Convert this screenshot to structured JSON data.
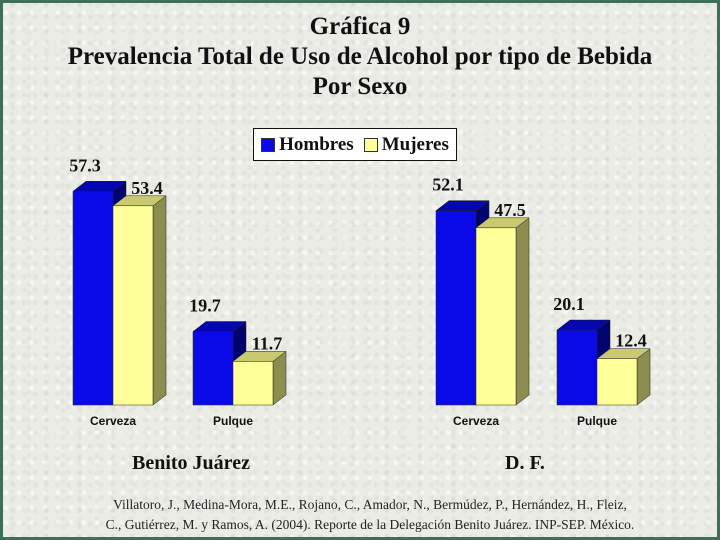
{
  "title": {
    "line1": "Gráfica 9",
    "line2": "Prevalencia Total de Uso de Alcohol por tipo de Bebida",
    "line3": "Por Sexo"
  },
  "legend": {
    "hombres": "Hombres",
    "mujeres": "Mujeres"
  },
  "colors": {
    "hombres_front": "#0a0ae8",
    "hombres_top": "#0606b0",
    "hombres_side": "#030370",
    "mujeres_front": "#ffff99",
    "mujeres_top": "#c9c970",
    "mujeres_side": "#8d8d50"
  },
  "chart_data": [
    {
      "type": "bar",
      "group_label": "Benito Juárez",
      "categories": [
        "Cerveza",
        "Pulque"
      ],
      "series": [
        {
          "name": "Hombres",
          "values": [
            57.3,
            19.7
          ]
        },
        {
          "name": "Mujeres",
          "values": [
            53.4,
            11.7
          ]
        }
      ],
      "ylim": [
        0,
        60
      ]
    },
    {
      "type": "bar",
      "group_label": "D. F.",
      "categories": [
        "Cerveza",
        "Pulque"
      ],
      "series": [
        {
          "name": "Hombres",
          "values": [
            52.1,
            20.1
          ]
        },
        {
          "name": "Mujeres",
          "values": [
            47.5,
            12.4
          ]
        }
      ],
      "ylim": [
        0,
        60
      ]
    }
  ],
  "citation": {
    "line1": "Villatoro, J., Medina-Mora, M.E., Rojano, C., Amador, N., Bermúdez, P., Hernández, H., Fleiz,",
    "line2": "C., Gutiérrez, M. y Ramos, A. (2004). Reporte de la Delegación Benito Juárez. INP-SEP. México."
  }
}
